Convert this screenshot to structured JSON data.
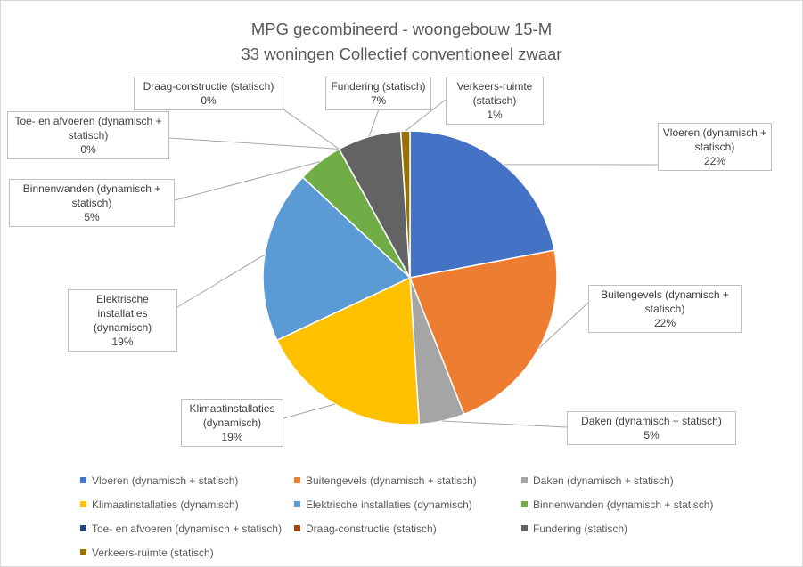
{
  "chart_data": {
    "type": "pie",
    "title": "MPG gecombineerd - woongebouw 15-M",
    "subtitle": "33 woningen Collectief conventioneel zwaar",
    "categories": [
      "Vloeren (dynamisch + statisch)",
      "Buitengevels (dynamisch + statisch)",
      "Daken (dynamisch + statisch)",
      "Klimaatinstallaties (dynamisch)",
      "Elektrische installaties (dynamisch)",
      "Binnenwanden (dynamisch + statisch)",
      "Toe- en afvoeren (dynamisch + statisch)",
      "Draag-constructie (statisch)",
      "Fundering (statisch)",
      "Verkeers-ruimte (statisch)"
    ],
    "values": [
      22,
      22,
      5,
      19,
      19,
      5,
      0,
      0,
      7,
      1
    ],
    "value_labels": [
      "22%",
      "22%",
      "5%",
      "19%",
      "19%",
      "5%",
      "0%",
      "0%",
      "7%",
      "1%"
    ],
    "colors": [
      "#4472c4",
      "#ed7d31",
      "#a5a5a5",
      "#ffc000",
      "#5b9bd5",
      "#70ad47",
      "#264478",
      "#9e480e",
      "#636363",
      "#997300"
    ],
    "legend": "bottom"
  }
}
